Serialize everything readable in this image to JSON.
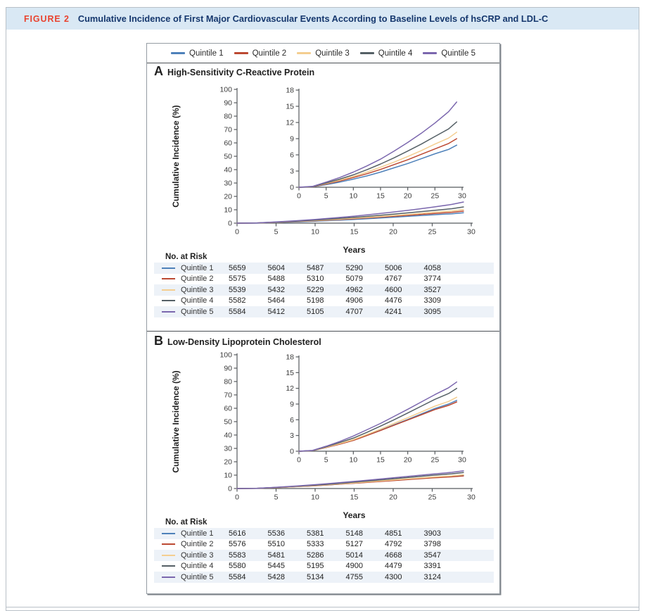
{
  "figure": {
    "label": "FIGURE 2",
    "title": "Cumulative Incidence of First Major Cardiovascular Events According to Baseline Levels of hsCRP and LDL-C"
  },
  "colors": {
    "header_band": "#d9e8f4",
    "figure_label_red": "#e9432f",
    "figure_title_navy": "#16386e",
    "row_stripe": "#edf2f8",
    "axis": "#565a5e"
  },
  "legend": {
    "items": [
      {
        "label": "Quintile 1",
        "color": "#4E81BA"
      },
      {
        "label": "Quintile 2",
        "color": "#BC4932"
      },
      {
        "label": "Quintile 3",
        "color": "#F4CE90"
      },
      {
        "label": "Quintile 4",
        "color": "#556066"
      },
      {
        "label": "Quintile 5",
        "color": "#7B67AE"
      }
    ]
  },
  "chart_data": [
    {
      "id": "A",
      "type": "line",
      "panel_letter": "A",
      "panel_title": "High-Sensitivity C-Reactive Protein",
      "ylabel": "Cumulative Incidence (%)",
      "xlabel": "Years",
      "legend_position": "top",
      "xlim": [
        0,
        30
      ],
      "xticks": [
        0,
        5,
        10,
        15,
        20,
        25,
        30
      ],
      "main_ylim": [
        0,
        100
      ],
      "main_yticks": [
        0,
        10,
        20,
        30,
        40,
        50,
        60,
        70,
        80,
        90,
        100
      ],
      "inset_ylim": [
        0,
        18
      ],
      "inset_yticks": [
        0,
        3,
        6,
        9,
        12,
        15,
        18
      ],
      "x": [
        0,
        2.5,
        5,
        7.5,
        10,
        12.5,
        15,
        17.5,
        20,
        22.5,
        25,
        27.5,
        29
      ],
      "series": [
        {
          "name": "Quintile 1",
          "color": "#4E81BA",
          "values": [
            0,
            0.06,
            0.5,
            0.95,
            1.5,
            2.1,
            2.8,
            3.6,
            4.4,
            5.3,
            6.2,
            7.0,
            7.8
          ]
        },
        {
          "name": "Quintile 2",
          "color": "#BC4932",
          "values": [
            0,
            0.08,
            0.6,
            1.15,
            1.8,
            2.5,
            3.3,
            4.2,
            5.1,
            6.1,
            7.1,
            8.1,
            9.0
          ]
        },
        {
          "name": "Quintile 3",
          "color": "#F4CE90",
          "values": [
            0,
            0.1,
            0.7,
            1.3,
            2.0,
            2.8,
            3.7,
            4.65,
            5.7,
            6.8,
            8.0,
            9.1,
            10.2
          ]
        },
        {
          "name": "Quintile 4",
          "color": "#556066",
          "values": [
            0,
            0.1,
            0.8,
            1.5,
            2.3,
            3.25,
            4.3,
            5.45,
            6.7,
            8.0,
            9.4,
            10.8,
            12.1
          ]
        },
        {
          "name": "Quintile 5",
          "color": "#7B67AE",
          "values": [
            0,
            0.15,
            0.95,
            1.8,
            2.8,
            3.95,
            5.2,
            6.7,
            8.3,
            10.0,
            11.9,
            14.0,
            15.8
          ]
        }
      ],
      "at_risk": {
        "header": "No. at Risk",
        "columns": [
          0,
          5,
          10,
          15,
          20,
          25
        ],
        "rows": [
          {
            "label": "Quintile 1",
            "color": "#4E81BA",
            "values": [
              5659,
              5604,
              5487,
              5290,
              5006,
              4058
            ]
          },
          {
            "label": "Quintile 2",
            "color": "#BC4932",
            "values": [
              5575,
              5488,
              5310,
              5079,
              4767,
              3774
            ]
          },
          {
            "label": "Quintile 3",
            "color": "#F4CE90",
            "values": [
              5539,
              5432,
              5229,
              4962,
              4600,
              3527
            ]
          },
          {
            "label": "Quintile 4",
            "color": "#556066",
            "values": [
              5582,
              5464,
              5198,
              4906,
              4476,
              3309
            ]
          },
          {
            "label": "Quintile 5",
            "color": "#7B67AE",
            "values": [
              5584,
              5412,
              5105,
              4707,
              4241,
              3095
            ]
          }
        ]
      }
    },
    {
      "id": "B",
      "type": "line",
      "panel_letter": "B",
      "panel_title": "Low-Density Lipoprotein Cholesterol",
      "ylabel": "Cumulative Incidence (%)",
      "xlabel": "Years",
      "legend_position": "top",
      "xlim": [
        0,
        30
      ],
      "xticks": [
        0,
        5,
        10,
        15,
        20,
        25,
        30
      ],
      "main_ylim": [
        0,
        100
      ],
      "main_yticks": [
        0,
        10,
        20,
        30,
        40,
        50,
        60,
        70,
        80,
        90,
        100
      ],
      "inset_ylim": [
        0,
        18
      ],
      "inset_yticks": [
        0,
        3,
        6,
        9,
        12,
        15,
        18
      ],
      "x": [
        0,
        2.5,
        5,
        7.5,
        10,
        12.5,
        15,
        17.5,
        20,
        22.5,
        25,
        27.5,
        29
      ],
      "series": [
        {
          "name": "Quintile 1",
          "color": "#4E81BA",
          "values": [
            0,
            0.1,
            0.72,
            1.4,
            2.1,
            3.05,
            4.0,
            5.05,
            6.05,
            7.1,
            8.15,
            9.0,
            9.7
          ]
        },
        {
          "name": "Quintile 2",
          "color": "#BC4932",
          "values": [
            0,
            0.1,
            0.7,
            1.35,
            2.05,
            3.0,
            3.95,
            4.95,
            5.95,
            6.95,
            7.95,
            8.75,
            9.4
          ]
        },
        {
          "name": "Quintile 3",
          "color": "#F4CE90",
          "values": [
            0,
            0.1,
            0.75,
            1.45,
            2.2,
            3.2,
            4.2,
            5.3,
            6.4,
            7.5,
            8.6,
            9.5,
            10.3
          ]
        },
        {
          "name": "Quintile 4",
          "color": "#556066",
          "values": [
            0,
            0.12,
            0.85,
            1.65,
            2.5,
            3.6,
            4.8,
            6.0,
            7.3,
            8.6,
            9.9,
            11.0,
            12.0
          ]
        },
        {
          "name": "Quintile 5",
          "color": "#7B67AE",
          "values": [
            0,
            0.15,
            0.95,
            1.85,
            2.9,
            4.1,
            5.3,
            6.65,
            8.0,
            9.4,
            10.8,
            12.1,
            13.2
          ]
        }
      ],
      "at_risk": {
        "header": "No. at Risk",
        "columns": [
          0,
          5,
          10,
          15,
          20,
          25
        ],
        "rows": [
          {
            "label": "Quintile 1",
            "color": "#4E81BA",
            "values": [
              5616,
              5536,
              5381,
              5148,
              4851,
              3903
            ]
          },
          {
            "label": "Quintile 2",
            "color": "#BC4932",
            "values": [
              5576,
              5510,
              5333,
              5127,
              4792,
              3798
            ]
          },
          {
            "label": "Quintile 3",
            "color": "#F4CE90",
            "values": [
              5583,
              5481,
              5286,
              5014,
              4668,
              3547
            ]
          },
          {
            "label": "Quintile 4",
            "color": "#556066",
            "values": [
              5580,
              5445,
              5195,
              4900,
              4479,
              3391
            ]
          },
          {
            "label": "Quintile 5",
            "color": "#7B67AE",
            "values": [
              5584,
              5428,
              5134,
              4755,
              4300,
              3124
            ]
          }
        ]
      }
    }
  ]
}
